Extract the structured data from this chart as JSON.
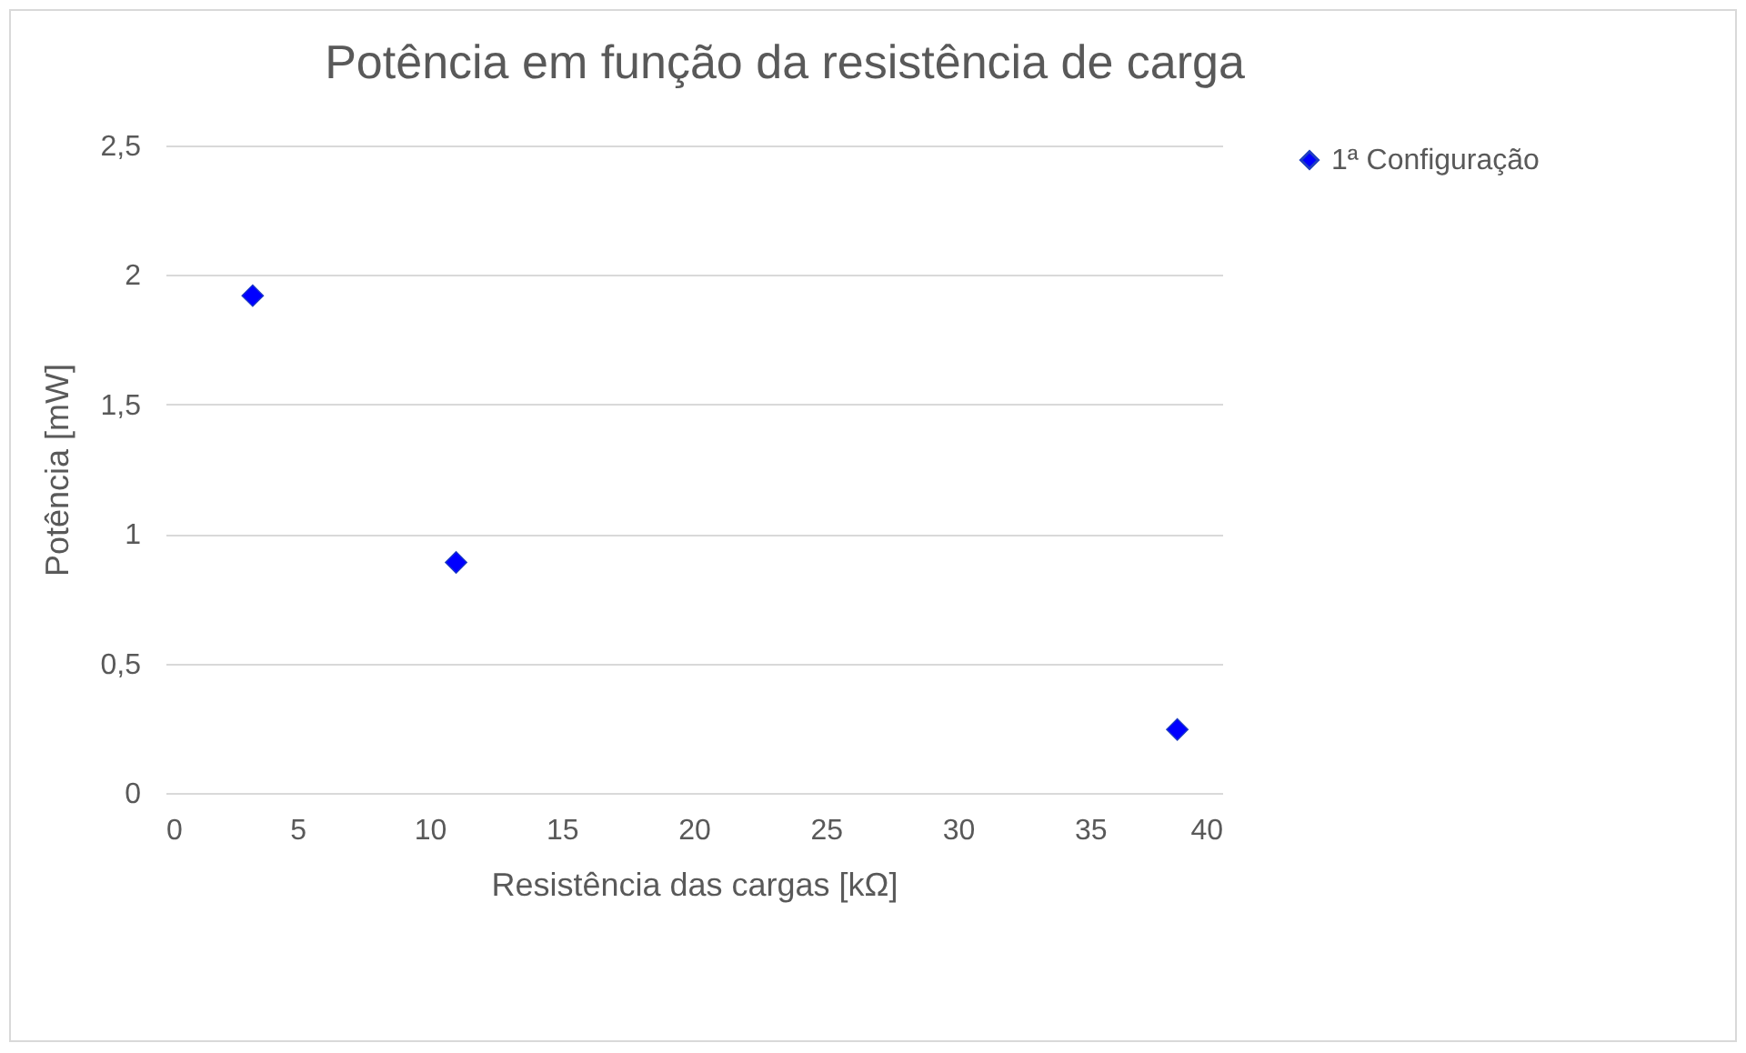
{
  "chart_data": {
    "type": "scatter",
    "title": "Potência em função da resistência de carga",
    "xlabel": "Resistência das cargas [kΩ]",
    "ylabel": "Potência [mW]",
    "x": [
      3.3,
      11.0,
      38.3
    ],
    "series": [
      {
        "name": "1ª Configuração",
        "color": "#0000ff",
        "values": [
          1.92,
          0.89,
          0.245
        ]
      }
    ],
    "xlim": [
      0,
      40
    ],
    "xticks": [
      0,
      5,
      10,
      15,
      20,
      25,
      30,
      35,
      40
    ],
    "ylim": [
      0,
      2.5
    ],
    "yticks": [
      {
        "value": 0,
        "label": "0"
      },
      {
        "value": 0.5,
        "label": "0,5"
      },
      {
        "value": 1,
        "label": "1"
      },
      {
        "value": 1.5,
        "label": "1,5"
      },
      {
        "value": 2,
        "label": "2"
      },
      {
        "value": 2.5,
        "label": "2,5"
      }
    ],
    "grid": "y",
    "legend": "right",
    "marker": "diamond"
  }
}
